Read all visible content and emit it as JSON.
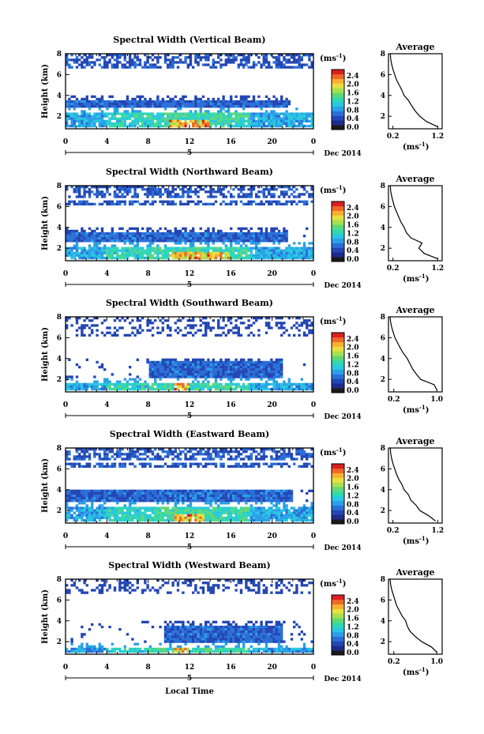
{
  "figure": {
    "bottom_xlabel": "Local Time",
    "colors": [
      "#1a1a1a",
      "#1c2c8c",
      "#2346b4",
      "#2a6fd8",
      "#2aa0e8",
      "#28c8e0",
      "#30d8b0",
      "#60d878",
      "#a8e050",
      "#e8e040",
      "#f8b030",
      "#f06828",
      "#d82020"
    ]
  },
  "chart_data": [
    {
      "type": "heatmap",
      "title": "Spectral Width (Vertical Beam)",
      "ylabel": "Height (km)",
      "yticks": [
        "2",
        "4",
        "6",
        "8"
      ],
      "ylim": [
        0.8,
        8.0
      ],
      "xticks": [
        "0",
        "4",
        "8",
        "12",
        "16",
        "20",
        "0"
      ],
      "xlim": [
        0,
        24
      ],
      "day_label": "5",
      "date_label": "Dec 2014",
      "colorbar": {
        "label": "(ms",
        "label_exp": "-1",
        "label_close": ")",
        "ticks": [
          "0.0",
          "0.4",
          "0.8",
          "1.2",
          "1.6",
          "2.0",
          "2.4"
        ],
        "range": [
          0.0,
          2.8
        ]
      },
      "profile": {
        "title": "Average",
        "xticks": [
          "0.2",
          "1.2"
        ],
        "xlim": [
          0.1,
          1.3
        ],
        "yticks": [
          "2",
          "4",
          "6",
          "8"
        ],
        "ylim": [
          0.8,
          8.0
        ],
        "xlabel": "(ms",
        "xlabel_exp": "-1",
        "xlabel_close": ")",
        "heights": [
          1.0,
          1.5,
          2.0,
          2.5,
          3.0,
          3.5,
          4.0,
          4.5,
          5.0,
          5.5,
          6.0,
          6.5,
          7.0,
          7.5,
          8.0
        ],
        "values": [
          1.2,
          0.95,
          0.8,
          0.7,
          0.62,
          0.55,
          0.45,
          0.4,
          0.34,
          0.28,
          0.24,
          0.2,
          0.17,
          0.15,
          0.14
        ]
      }
    },
    {
      "type": "heatmap",
      "title": "Spectral Width (Northward Beam)",
      "ylabel": "Height (km)",
      "yticks": [
        "2",
        "4",
        "6",
        "8"
      ],
      "ylim": [
        0.8,
        8.0
      ],
      "xticks": [
        "0",
        "4",
        "8",
        "12",
        "16",
        "20",
        "0"
      ],
      "xlim": [
        0,
        24
      ],
      "day_label": "5",
      "date_label": "Dec 2014",
      "colorbar": {
        "label": "(ms",
        "label_exp": "-1",
        "label_close": ")",
        "ticks": [
          "0.0",
          "0.4",
          "0.8",
          "1.2",
          "1.6",
          "2.0",
          "2.4"
        ],
        "range": [
          0.0,
          2.8
        ]
      },
      "profile": {
        "title": "Average",
        "xticks": [
          "0.2",
          "1.2"
        ],
        "xlim": [
          0.1,
          1.3
        ],
        "yticks": [
          "2",
          "4",
          "6",
          "8"
        ],
        "ylim": [
          0.8,
          8.0
        ],
        "xlabel": "(ms",
        "xlabel_exp": "-1",
        "xlabel_close": ")",
        "heights": [
          1.0,
          1.5,
          2.0,
          2.5,
          3.0,
          3.5,
          4.0,
          4.5,
          5.0,
          5.5,
          6.0,
          6.5,
          7.0,
          7.5,
          8.0
        ],
        "values": [
          1.2,
          0.9,
          0.78,
          0.85,
          0.6,
          0.5,
          0.45,
          0.38,
          0.33,
          0.28,
          0.23,
          0.2,
          0.17,
          0.15,
          0.14
        ]
      }
    },
    {
      "type": "heatmap",
      "title": "Spectral Width (Southward Beam)",
      "ylabel": "Height (km)",
      "yticks": [
        "2",
        "4",
        "6",
        "8"
      ],
      "ylim": [
        0.8,
        8.0
      ],
      "xticks": [
        "0",
        "4",
        "8",
        "12",
        "16",
        "20",
        "0"
      ],
      "xlim": [
        0,
        24
      ],
      "day_label": "5",
      "date_label": "Dec 2014",
      "colorbar": {
        "label": "(ms",
        "label_exp": "-1",
        "label_close": ")",
        "ticks": [
          "0.0",
          "0.4",
          "0.8",
          "1.2",
          "1.6",
          "2.0",
          "2.4"
        ],
        "range": [
          0.0,
          2.8
        ]
      },
      "profile": {
        "title": "Average",
        "xticks": [
          "0.2",
          "1.0"
        ],
        "xlim": [
          0.1,
          1.1
        ],
        "yticks": [
          "2",
          "4",
          "6",
          "8"
        ],
        "ylim": [
          0.8,
          8.0
        ],
        "xlabel": "(ms",
        "xlabel_exp": "-1",
        "xlabel_close": ")",
        "heights": [
          1.0,
          1.5,
          2.0,
          2.5,
          3.0,
          3.5,
          4.0,
          4.5,
          5.0,
          5.5,
          6.0,
          6.5,
          7.0,
          7.5,
          8.0
        ],
        "values": [
          1.0,
          0.95,
          0.7,
          0.62,
          0.55,
          0.5,
          0.45,
          0.38,
          0.32,
          0.27,
          0.22,
          0.19,
          0.16,
          0.14,
          0.13
        ]
      }
    },
    {
      "type": "heatmap",
      "title": "Spectral Width (Eastward Beam)",
      "ylabel": "Height (km)",
      "yticks": [
        "2",
        "4",
        "6",
        "8"
      ],
      "ylim": [
        0.8,
        8.0
      ],
      "xticks": [
        "0",
        "4",
        "8",
        "12",
        "16",
        "20",
        "0"
      ],
      "xlim": [
        0,
        24
      ],
      "day_label": "5",
      "date_label": "Dec 2014",
      "colorbar": {
        "label": "(ms",
        "label_exp": "-1",
        "label_close": ")",
        "ticks": [
          "0.0",
          "0.4",
          "0.8",
          "1.2",
          "1.6",
          "2.0",
          "2.4"
        ],
        "range": [
          0.0,
          2.8
        ]
      },
      "profile": {
        "title": "Average",
        "xticks": [
          "0.2",
          "1.2"
        ],
        "xlim": [
          0.1,
          1.3
        ],
        "yticks": [
          "2",
          "4",
          "6",
          "8"
        ],
        "ylim": [
          0.8,
          8.0
        ],
        "xlabel": "(ms",
        "xlabel_exp": "-1",
        "xlabel_close": ")",
        "heights": [
          1.0,
          1.5,
          2.0,
          2.5,
          3.0,
          3.5,
          4.0,
          4.5,
          5.0,
          5.5,
          6.0,
          6.5,
          7.0,
          7.5,
          8.0
        ],
        "values": [
          1.15,
          1.0,
          0.8,
          0.72,
          0.6,
          0.55,
          0.45,
          0.4,
          0.33,
          0.28,
          0.24,
          0.2,
          0.17,
          0.15,
          0.14
        ]
      }
    },
    {
      "type": "heatmap",
      "title": "Spectral Width (Westward Beam)",
      "ylabel": "Height (km)",
      "yticks": [
        "2",
        "4",
        "6",
        "8"
      ],
      "ylim": [
        0.8,
        8.0
      ],
      "xticks": [
        "0",
        "4",
        "8",
        "12",
        "16",
        "20",
        "0"
      ],
      "xlim": [
        0,
        24
      ],
      "day_label": "5",
      "date_label": "Dec 2014",
      "colorbar": {
        "label": "(ms",
        "label_exp": "-1",
        "label_close": ")",
        "ticks": [
          "0.0",
          "0.4",
          "0.8",
          "1.2",
          "1.6",
          "2.0",
          "2.4"
        ],
        "range": [
          0.0,
          2.8
        ]
      },
      "profile": {
        "title": "Average",
        "xticks": [
          "0.2",
          "1.0"
        ],
        "xlim": [
          0.1,
          1.1
        ],
        "yticks": [
          "2",
          "4",
          "6",
          "8"
        ],
        "ylim": [
          0.8,
          8.0
        ],
        "xlabel": "(ms",
        "xlabel_exp": "-1",
        "xlabel_close": ")",
        "heights": [
          1.0,
          1.5,
          2.0,
          2.5,
          3.0,
          3.5,
          4.0,
          4.5,
          5.0,
          5.5,
          6.0,
          6.5,
          7.0,
          7.5,
          8.0
        ],
        "values": [
          1.0,
          0.9,
          0.72,
          0.6,
          0.5,
          0.45,
          0.42,
          0.35,
          0.3,
          0.25,
          0.22,
          0.19,
          0.16,
          0.14,
          0.13
        ]
      }
    }
  ]
}
